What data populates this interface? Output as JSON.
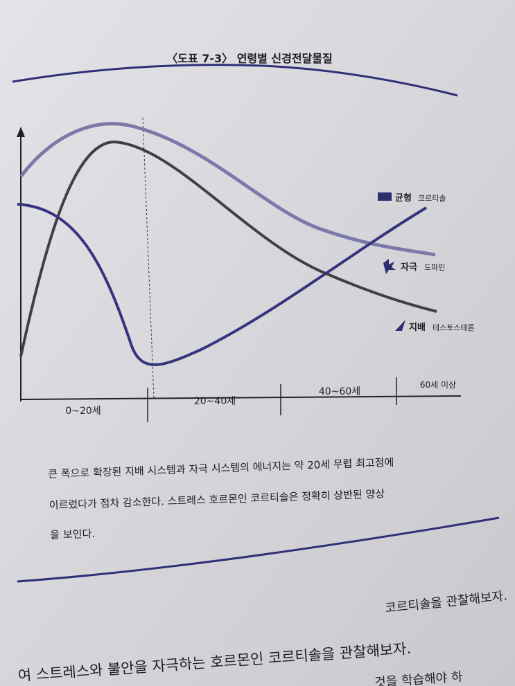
{
  "figure": {
    "title": "〈도표 7-3〉 연령별 신경전달물질",
    "legend": [
      {
        "system": "균형",
        "hormone": "코르티솔"
      },
      {
        "system": "자극",
        "hormone": "도파민"
      },
      {
        "system": "지배",
        "hormone": "테스토스테론"
      }
    ],
    "age_groups": [
      "0~20세",
      "20~40세",
      "40~60세",
      "60세 이상"
    ]
  },
  "caption": [
    "큰 폭으로 확장된 지배 시스템과 자극 시스템의 에너지는 약 20세 무렵 최고점에",
    "이르렀다가 점차 감소한다. 스트레스 호르몬인 코르티솔은 정확히 상반된 양상",
    "을 보인다."
  ],
  "body": [
    "코르티솔을 관찰해보자.",
    "여 스트레스와 불안을 자극하는 호르몬인 코르티솔을 관찰해보자.",
    "것을 학습해야 하"
  ]
}
